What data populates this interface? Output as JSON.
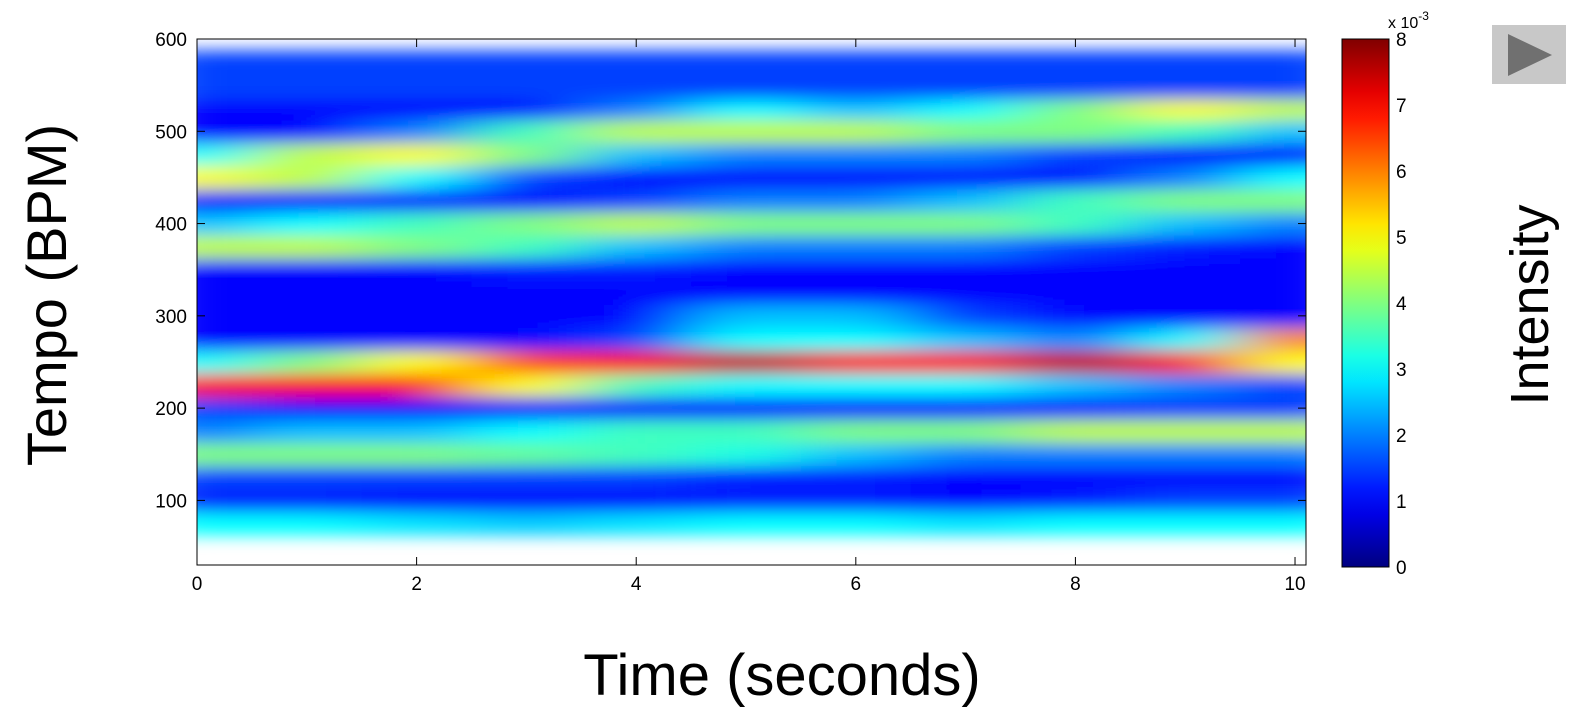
{
  "chart_data": {
    "type": "heatmap",
    "x_label": "Time (seconds)",
    "y_label": "Tempo (BPM)",
    "colorbar_label": "Intensity",
    "colorbar_scale": {
      "base": "x 10",
      "exponent": "-3"
    },
    "colormap": "jet",
    "xlim": [
      0,
      10.1
    ],
    "xticks": [
      0,
      2,
      4,
      6,
      8,
      10
    ],
    "ylim": [
      30,
      600
    ],
    "yticks": [
      100,
      200,
      300,
      400,
      500,
      600
    ],
    "clim": [
      0,
      8
    ],
    "cticks": [
      0,
      1,
      2,
      3,
      4,
      5,
      6,
      7,
      8
    ],
    "x": [
      0,
      1,
      2,
      3,
      4,
      5,
      6,
      7,
      8,
      9,
      10
    ],
    "y": [
      50,
      75,
      100,
      125,
      150,
      175,
      200,
      225,
      250,
      275,
      300,
      325,
      350,
      375,
      400,
      425,
      450,
      475,
      500,
      525,
      550,
      575,
      600
    ],
    "z": [
      [
        1.2,
        1,
        1,
        1,
        1,
        1.2,
        1,
        1,
        1,
        1,
        1
      ],
      [
        3,
        3,
        2.8,
        2.6,
        2.8,
        3,
        3,
        2.8,
        3,
        3,
        3
      ],
      [
        1.2,
        1.2,
        1,
        1,
        1,
        1.2,
        1.2,
        1,
        1.2,
        1.5,
        1.5
      ],
      [
        1.5,
        1.5,
        1.5,
        1.5,
        1.5,
        1.2,
        1.2,
        1,
        1,
        1,
        1
      ],
      [
        4,
        4,
        4,
        3.8,
        3.5,
        3.2,
        2.5,
        2,
        2,
        2,
        2
      ],
      [
        2,
        2.5,
        2.5,
        3,
        3.5,
        3.5,
        4,
        4,
        4.5,
        4.5,
        4.5
      ],
      [
        1.5,
        1,
        1,
        1,
        1,
        1,
        1,
        1,
        1.2,
        1.5,
        1.5
      ],
      [
        7,
        7,
        7,
        5,
        3.5,
        3,
        3,
        3,
        2.5,
        2,
        1.5
      ],
      [
        3,
        4,
        5,
        6.5,
        7,
        7.5,
        7,
        7,
        7.5,
        7,
        5
      ],
      [
        1,
        1,
        1,
        1,
        1.5,
        3,
        3,
        2.5,
        2,
        3,
        6
      ],
      [
        1,
        1,
        1,
        1,
        1,
        2.5,
        2.5,
        1.5,
        1,
        1,
        1
      ],
      [
        1,
        1,
        1,
        1,
        1,
        1,
        1,
        1,
        1,
        1,
        1
      ],
      [
        1,
        1,
        1,
        1.2,
        1.2,
        1,
        1,
        1,
        1,
        1,
        1
      ],
      [
        4.5,
        4.5,
        4,
        3.5,
        2.5,
        2,
        2,
        2,
        1.5,
        1.2,
        1
      ],
      [
        2.5,
        3,
        3.5,
        4,
        4.5,
        4,
        4,
        4,
        3.5,
        2.5,
        2
      ],
      [
        1,
        1,
        1,
        1,
        1.5,
        2,
        2,
        2.5,
        3.5,
        4,
        4
      ],
      [
        5,
        4.5,
        3,
        1.5,
        1,
        1,
        1,
        1,
        1,
        2,
        3
      ],
      [
        3,
        4.5,
        5,
        4,
        2.5,
        2,
        2,
        2,
        1.5,
        1,
        1
      ],
      [
        1,
        1,
        2,
        3.5,
        4.5,
        4.5,
        4.5,
        4,
        4,
        3.5,
        2.5
      ],
      [
        1,
        1,
        1,
        1,
        2,
        3,
        2.5,
        3,
        4,
        5,
        4.5
      ],
      [
        1,
        1,
        1,
        1,
        1.5,
        2,
        1.5,
        1,
        1,
        1.5,
        2.5
      ],
      [
        1,
        1,
        1,
        1,
        1,
        1,
        1,
        1,
        1,
        1,
        1
      ],
      [
        1.5,
        1.5,
        1.5,
        1.5,
        1.5,
        1.5,
        1.5,
        1.5,
        1.5,
        1.5,
        1.5
      ]
    ]
  }
}
